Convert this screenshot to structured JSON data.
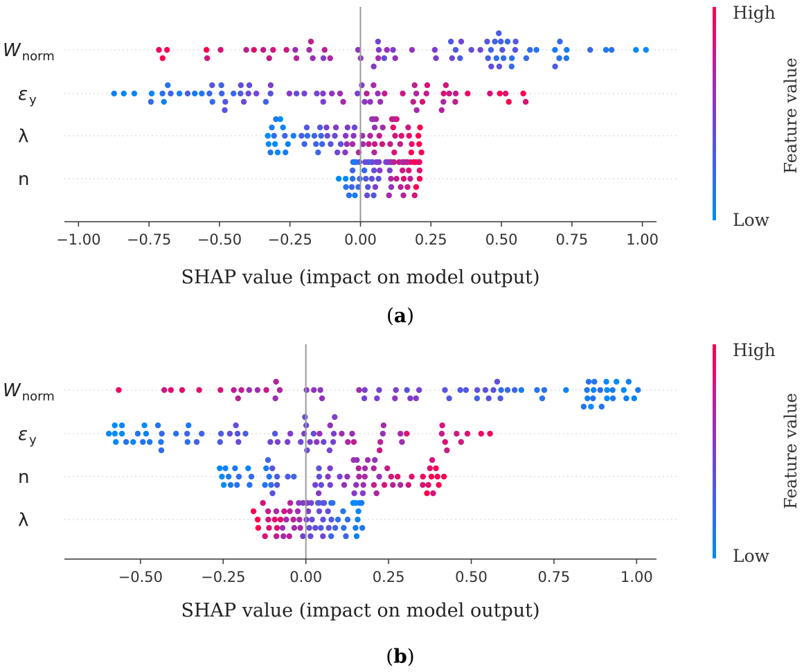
{
  "figure": {
    "panels": [
      {
        "label_text": "a",
        "colorbar": {
          "high_label": "High",
          "low_label": "Low",
          "title": "Feature value"
        }
      },
      {
        "label_text": "b",
        "colorbar": {
          "high_label": "High",
          "low_label": "Low",
          "title": "Feature value"
        }
      }
    ]
  },
  "chart_data": [
    {
      "type": "scatter",
      "subtype": "beeswarm",
      "panel": "a",
      "xlabel": "SHAP value (impact on model output)",
      "xlim": [
        -1.05,
        1.05
      ],
      "xticks": [
        -1.0,
        -0.75,
        -0.5,
        -0.25,
        0.0,
        0.25,
        0.5,
        0.75,
        1.0
      ],
      "xtick_labels": [
        "−1.00",
        "−0.75",
        "−0.50",
        "−0.25",
        "0.00",
        "0.25",
        "0.50",
        "0.75",
        "1.00"
      ],
      "features": [
        {
          "name": "W",
          "subscript": "norm",
          "min": -0.74,
          "max": 1.02,
          "trend": "high_negative"
        },
        {
          "name": "ε",
          "subscript": "y",
          "min": -0.93,
          "max": 0.62,
          "trend": "high_positive"
        },
        {
          "name": "λ",
          "subscript": "",
          "min": -0.34,
          "max": 0.22,
          "trend": "high_positive"
        },
        {
          "name": "n",
          "subscript": "",
          "min": -0.08,
          "max": 0.22,
          "trend": "high_positive"
        }
      ],
      "colorbar": {
        "high": "High",
        "low": "Low",
        "title": "Feature value",
        "high_color": "#ff0051",
        "low_color": "#008bfb"
      },
      "grid": false
    },
    {
      "type": "scatter",
      "subtype": "beeswarm",
      "panel": "b",
      "xlabel": "SHAP value (impact on model output)",
      "xlim": [
        -0.73,
        1.06
      ],
      "xticks": [
        -0.5,
        -0.25,
        0.0,
        0.25,
        0.5,
        0.75,
        1.0
      ],
      "xtick_labels": [
        "−0.50",
        "−0.25",
        "0.00",
        "0.25",
        "0.50",
        "0.75",
        "1.00"
      ],
      "features": [
        {
          "name": "W",
          "subscript": "norm",
          "min": -0.59,
          "max": 1.02,
          "trend": "high_negative"
        },
        {
          "name": "ε",
          "subscript": "y",
          "min": -0.6,
          "max": 0.58,
          "trend": "high_positive"
        },
        {
          "name": "n",
          "subscript": "",
          "min": -0.27,
          "max": 0.42,
          "trend": "high_positive"
        },
        {
          "name": "λ",
          "subscript": "",
          "min": -0.16,
          "max": 0.18,
          "trend": "high_negative"
        }
      ],
      "colorbar": {
        "high": "High",
        "low": "Low",
        "title": "Feature value",
        "high_color": "#ff0051",
        "low_color": "#008bfb"
      },
      "grid": false
    }
  ]
}
